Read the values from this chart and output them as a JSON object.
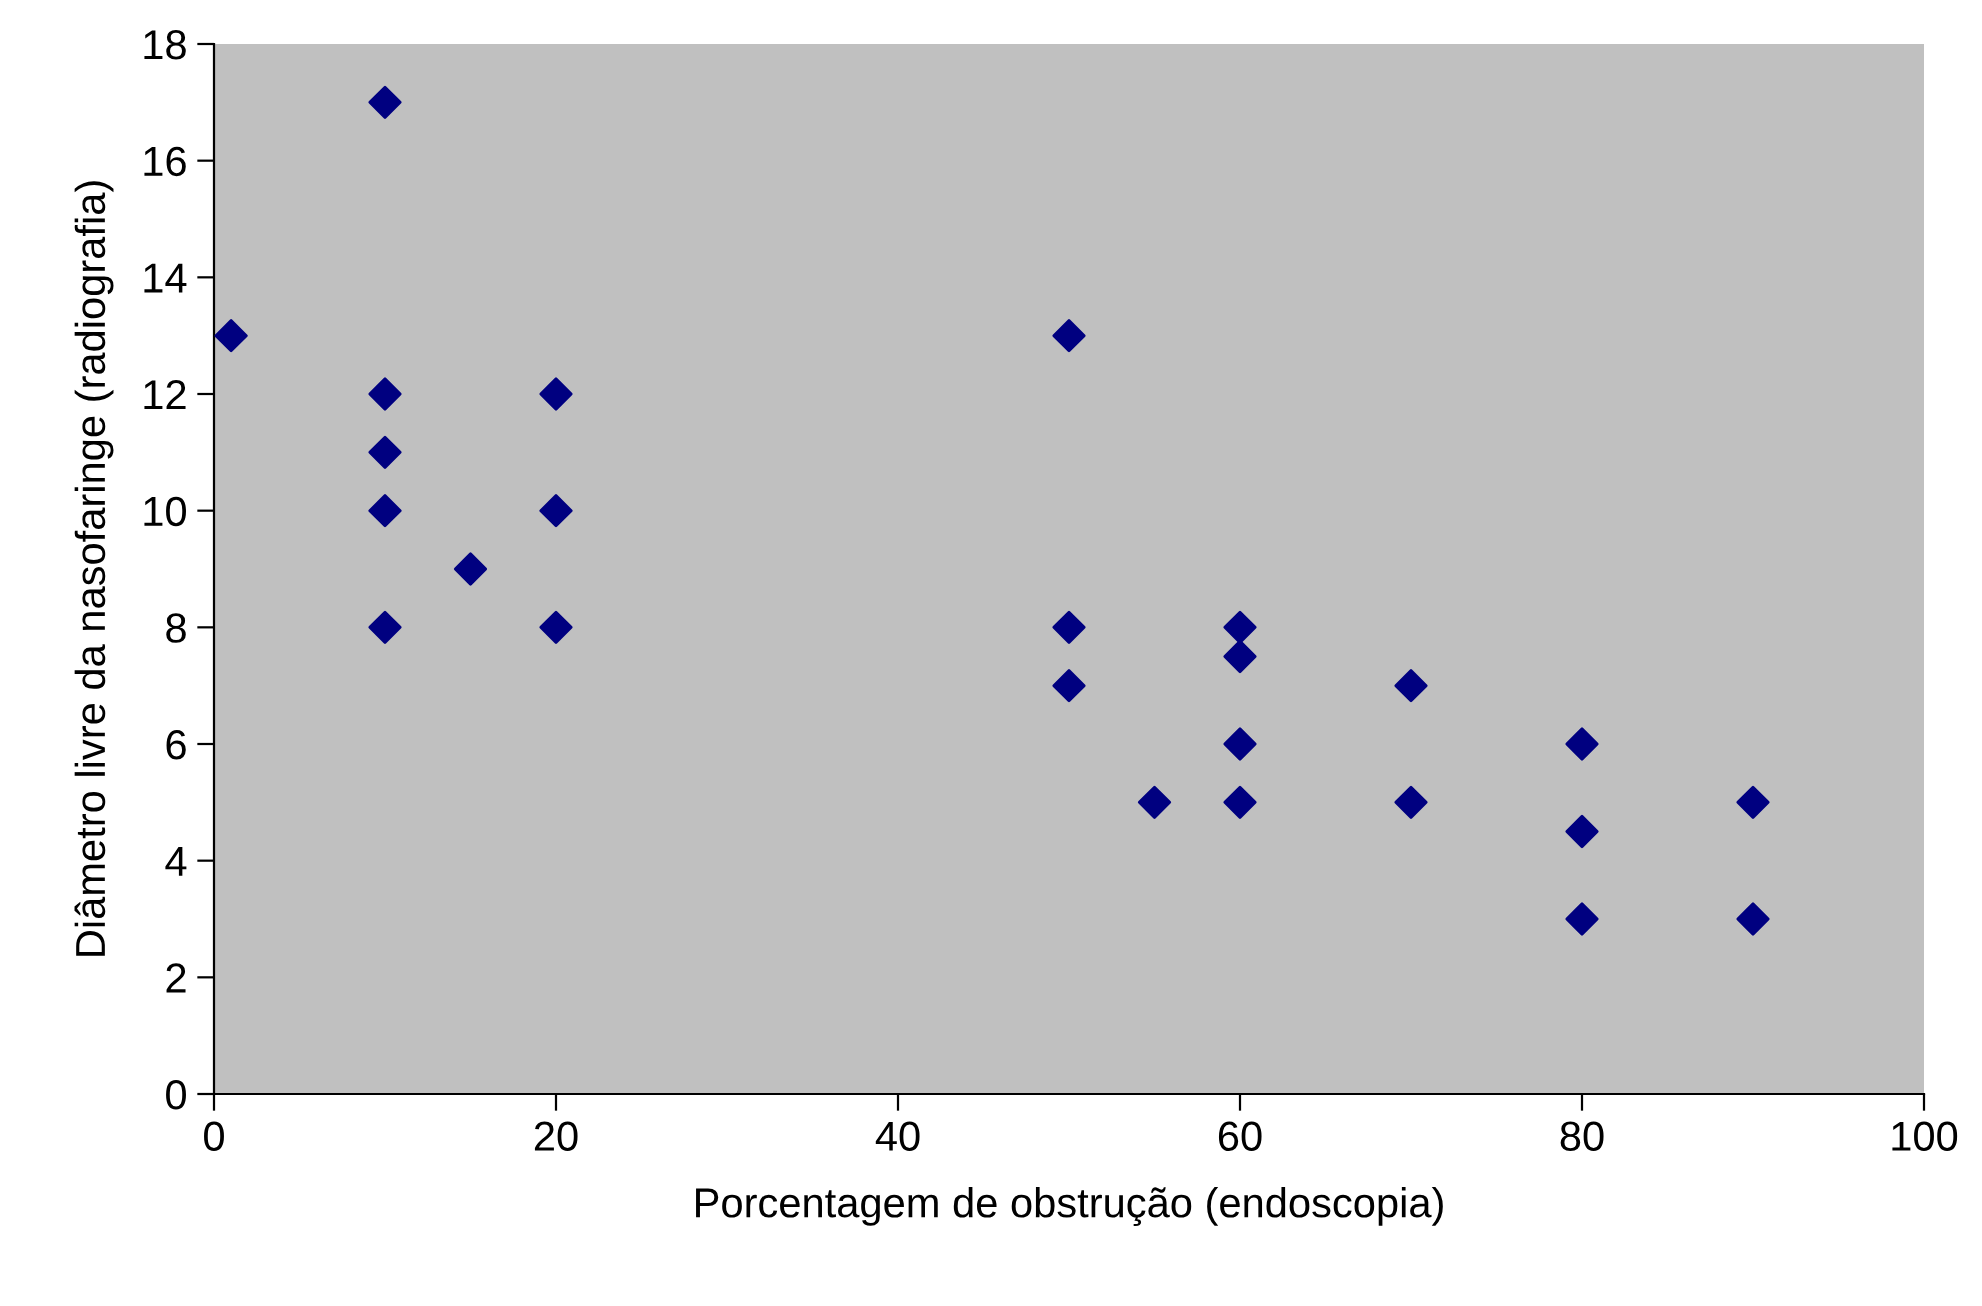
{
  "chart_data": {
    "type": "scatter",
    "xlabel": "Porcentagem de obstrução (endoscopia)",
    "ylabel": "Diâmetro livre da nasofaringe (radiografia)",
    "series": [
      {
        "color": "#000080",
        "x": [
          1,
          10,
          10,
          10,
          10,
          10,
          15,
          20,
          20,
          20,
          50,
          50,
          50,
          55,
          60,
          60,
          60,
          60,
          70,
          70,
          80,
          80,
          80,
          90,
          90
        ],
        "values": [
          13,
          17,
          12,
          11,
          10,
          8,
          9,
          12,
          10,
          8,
          13,
          8,
          7,
          5,
          8,
          7.5,
          6,
          5,
          7,
          5,
          6,
          4.5,
          3,
          5,
          3
        ]
      }
    ],
    "xlim": [
      0,
      100
    ],
    "xticks": [
      0,
      20,
      40,
      60,
      80,
      100
    ],
    "ylim": [
      0,
      18
    ],
    "yticks": [
      0,
      2,
      4,
      6,
      8,
      10,
      12,
      14,
      16,
      18
    ],
    "marker": "diamond",
    "grid": false,
    "legend": false
  }
}
